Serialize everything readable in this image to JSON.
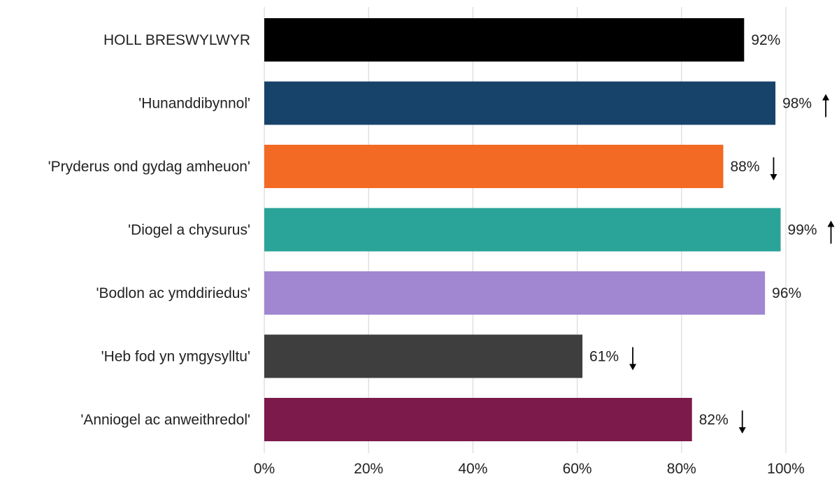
{
  "chart_data": {
    "type": "bar",
    "orientation": "horizontal",
    "categories": [
      "HOLL BRESWYLWYR",
      "'Hunanddibynnol'",
      "'Pryderus ond gydag amheuon'",
      "'Diogel a chysurus'",
      "'Bodlon ac ymddiriedus'",
      "'Heb fod yn ymgysylltu'",
      "'Anniogel ac anweithredol'"
    ],
    "values": [
      92,
      98,
      88,
      99,
      96,
      61,
      82
    ],
    "value_labels": [
      "92%",
      "98%",
      "88%",
      "99%",
      "96%",
      "61%",
      "82%"
    ],
    "trend": [
      "none",
      "up",
      "down",
      "up",
      "none",
      "down",
      "down"
    ],
    "colors": [
      "#000000",
      "#17436b",
      "#f26a24",
      "#2aa498",
      "#a187d1",
      "#3e3e3e",
      "#7b1a4b"
    ],
    "xlim": [
      0,
      100
    ],
    "xticks": [
      0,
      20,
      40,
      60,
      80,
      100
    ],
    "xtick_labels": [
      "0%",
      "20%",
      "40%",
      "60%",
      "80%",
      "100%"
    ],
    "grid": true,
    "legend": "none",
    "title": "",
    "xlabel": "",
    "ylabel": ""
  }
}
